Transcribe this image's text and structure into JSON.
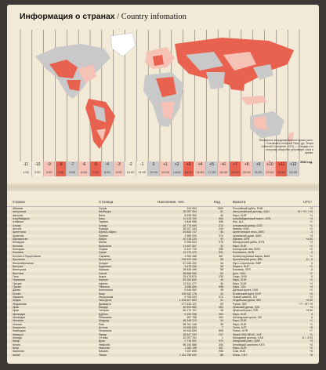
{
  "title_bold": "Информация о странах",
  "title_sub": "/ Country infomation",
  "note": "\"Всемирное координированное время (англ. Coordinated Universal Time), др. Temps Universel Coordonné, UTC) — стандарт, по которому общество регулирует часы и время.",
  "note2": "Данные актуальны на 2023 год.",
  "zones": [
    {
      "off": "-11",
      "time": "1:00",
      "color": "#f2ead7"
    },
    {
      "off": "-10",
      "time": "2:00",
      "color": "#f2ead7"
    },
    {
      "off": "-9",
      "time": "3:00",
      "color": "#f5c2b5"
    },
    {
      "off": "-8",
      "time": "4:00",
      "color": "#e8624f"
    },
    {
      "off": "-7",
      "time": "5:00",
      "color": "#c9c9c9"
    },
    {
      "off": "-6",
      "time": "6:00",
      "color": "#f5c2b5"
    },
    {
      "off": "-5",
      "time": "7:00",
      "color": "#e8624f"
    },
    {
      "off": "-4",
      "time": "8:00",
      "color": "#c9c9c9"
    },
    {
      "off": "-3",
      "time": "9:00",
      "color": "#f5c2b5"
    },
    {
      "off": "-2",
      "time": "10:00",
      "color": "#f2ead7"
    },
    {
      "off": "-1",
      "time": "11:00",
      "color": "#f2ead7"
    },
    {
      "off": "0",
      "time": "12:00",
      "color": "#c9c9c9"
    },
    {
      "off": "+1",
      "time": "13:00",
      "color": "#f5c2b5"
    },
    {
      "off": "+2",
      "time": "14:00",
      "color": "#c9c9c9"
    },
    {
      "off": "+3",
      "time": "15:00",
      "color": "#e8624f"
    },
    {
      "off": "+4",
      "time": "16:00",
      "color": "#f5c2b5"
    },
    {
      "off": "+5",
      "time": "17:00",
      "color": "#c9c9c9"
    },
    {
      "off": "+6",
      "time": "18:00",
      "color": "#f5c2b5"
    },
    {
      "off": "+7",
      "time": "19:00",
      "color": "#e8624f"
    },
    {
      "off": "+8",
      "time": "20:00",
      "color": "#f5c2b5"
    },
    {
      "off": "+9",
      "time": "21:00",
      "color": "#c9c9c9"
    },
    {
      "off": "+10",
      "time": "22:00",
      "color": "#f5c2b5"
    },
    {
      "off": "+11",
      "time": "23:00",
      "color": "#e8624f"
    },
    {
      "off": "+12",
      "time": "24:00",
      "color": "#c9c9c9"
    }
  ],
  "headers": {
    "country": "Страна",
    "capital": "Столица",
    "population": "Население, чел.",
    "code": "Код",
    "currency": "Валюта",
    "utc": "UTC¹"
  },
  "rows": [
    {
      "country": "Абхазия",
      "capital": "Сухум",
      "population": "243 564",
      "code": "7840",
      "currency": "Российский рубль, RUB",
      "utc": "+3"
    },
    {
      "country": "Австралия",
      "capital": "Канберра",
      "population": "26 087 900",
      "code": "61",
      "currency": "Австралийский доллар, AUD",
      "utc": "+8 / +9 / +10"
    },
    {
      "country": "Австрия",
      "capital": "Вена",
      "population": "8 935 362",
      "code": "43",
      "currency": "Евро, EUR",
      "utc": "+1"
    },
    {
      "country": "Азербайджан",
      "capital": "Баку",
      "population": "10 119 100",
      "code": "994",
      "currency": "Азербайджанский манат, AZN",
      "utc": "+4"
    },
    {
      "country": "Албания",
      "capital": "Тирана",
      "population": "2 845 955",
      "code": "355",
      "currency": "Лек, ALL",
      "utc": "+1"
    },
    {
      "country": "Алжир",
      "capital": "Алжир",
      "population": "45 775 650",
      "code": "213",
      "currency": "Алжирский динар, DZD",
      "utc": "+1"
    },
    {
      "country": "Ангола",
      "capital": "Луанда",
      "population": "35 027 343",
      "code": "244",
      "currency": "Кванза, AOA",
      "utc": "+1"
    },
    {
      "country": "Аргентина",
      "capital": "Буэнос-Айрес",
      "population": "45 808 747",
      "code": "54",
      "currency": "Аргентинское песо, ARS",
      "utc": "-3"
    },
    {
      "country": "Армения",
      "capital": "Ереван",
      "population": "2 969 200",
      "code": "374",
      "currency": "Армянский драм, AMD",
      "utc": "+4"
    },
    {
      "country": "Афганистан",
      "capital": "Кабул",
      "population": "40 218 234",
      "code": "93",
      "currency": "Афгани, AFN",
      "utc": "+4:30"
    },
    {
      "country": "Беларусь",
      "capital": "Минск",
      "population": "9 255 524",
      "code": "375",
      "currency": "Белорусский рубль, BYN",
      "utc": "+3"
    },
    {
      "country": "Бельгия",
      "capital": "Брюссель",
      "population": "11 697 557",
      "code": "32",
      "currency": "Евро, EUR",
      "utc": "+1"
    },
    {
      "country": "Болгария",
      "capital": "София",
      "population": "6 447 710",
      "code": "359",
      "currency": "Болгарский лев, BGN",
      "utc": "+2"
    },
    {
      "country": "Боливия",
      "capital": "Сукре",
      "population": "12 079 472",
      "code": "591",
      "currency": "Боливиано, BOB",
      "utc": "-4"
    },
    {
      "country": "Босния и Герцеговина",
      "capital": "Сараево",
      "population": "3 263 466",
      "code": "387",
      "currency": "Конвертируемая марка, BAM",
      "utc": "+1"
    },
    {
      "country": "Бразилия",
      "capital": "Бразилиа",
      "population": "216 422 446",
      "code": "55",
      "currency": "Бразильский реал, BRL",
      "utc": "-5 / -3"
    },
    {
      "country": "Великобритания",
      "capital": "Лондон",
      "population": "67 026 292",
      "code": "44",
      "currency": "Фунт стерлингов, GBP",
      "utc": "0"
    },
    {
      "country": "Венгрия",
      "capital": "Будапешт",
      "population": "9 676 330",
      "code": "36",
      "currency": "Форинт, HUF",
      "utc": "+1"
    },
    {
      "country": "Венесуэла",
      "capital": "Каракас",
      "population": "28 838 499",
      "code": "58",
      "currency": "Боливар, VES",
      "utc": "-4"
    },
    {
      "country": "Вьетнам",
      "capital": "Ханой",
      "population": "98 858 950",
      "code": "84",
      "currency": "Донг, VND",
      "utc": "+7"
    },
    {
      "country": "Гана",
      "capital": "Аккра",
      "population": "33 475 870",
      "code": "233",
      "currency": "Седи, GHS",
      "utc": "0"
    },
    {
      "country": "Германия",
      "capital": "Берлин",
      "population": "83 369 843",
      "code": "49",
      "currency": "Евро, EUR",
      "utc": "+1"
    },
    {
      "country": "Греция",
      "capital": "Афины",
      "population": "10 341 277",
      "code": "30",
      "currency": "Евро, EUR",
      "utc": "+2"
    },
    {
      "country": "Грузия",
      "capital": "Тбилиси",
      "population": "3 688 600",
      "code": "995",
      "currency": "Лари, GEL",
      "utc": "+4"
    },
    {
      "country": "Дания",
      "capital": "Копенгаген",
      "population": "5 946 952",
      "code": "45",
      "currency": "Датская крона, DKK",
      "utc": "+1"
    },
    {
      "country": "Египет",
      "capital": "Каир",
      "population": "109 262 178",
      "code": "20",
      "currency": "Египетский фунт, EGP",
      "utc": "+2"
    },
    {
      "country": "Израиль",
      "capital": "Иерусалим",
      "population": "9 795 000",
      "code": "972",
      "currency": "Новый шекель, ILS",
      "utc": "+2"
    },
    {
      "country": "Индия",
      "capital": "Нью-Дели",
      "population": "1 428 627 663",
      "code": "91",
      "currency": "Индийская рупия, INR",
      "utc": "+5:30"
    },
    {
      "country": "Индонезия",
      "capital": "Джакарта",
      "population": "277 534 122",
      "code": "62",
      "currency": "Рупия, IDR",
      "utc": "+7 / +8 / +9"
    },
    {
      "country": "Ирак",
      "capital": "Багдад",
      "population": "45 504 560",
      "code": "964",
      "currency": "Иракский динар, IQD",
      "utc": "+3"
    },
    {
      "country": "Иран",
      "capital": "Тегеран",
      "population": "89 172 767",
      "code": "98",
      "currency": "Иранский риал, IRR",
      "utc": "+3:30"
    },
    {
      "country": "Ирландия",
      "capital": "Дублин",
      "population": "5 194 336",
      "code": "353",
      "currency": "Евро, EUR",
      "utc": "0"
    },
    {
      "country": "Исландия",
      "capital": "Рейкьявик",
      "population": "387 758",
      "code": "354",
      "currency": "Исландская крона, ISK",
      "utc": "0"
    },
    {
      "country": "Испания",
      "capital": "Мадрид",
      "population": "48 345 223",
      "code": "34",
      "currency": "Евро, EUR",
      "utc": "+1"
    },
    {
      "country": "Италия",
      "capital": "Рим",
      "population": "58 761 146",
      "code": "39",
      "currency": "Евро, EUR",
      "utc": "+1"
    },
    {
      "country": "Казахстан",
      "capital": "Астана",
      "population": "19 606 633",
      "code": "7",
      "currency": "Тенге, KZT",
      "utc": "+5"
    },
    {
      "country": "Камбоджа",
      "capital": "Пномпень",
      "population": "16 944 826",
      "code": "855",
      "currency": "Риель, KHR",
      "utc": "+7"
    },
    {
      "country": "Камерун",
      "capital": "Яунде",
      "population": "28 647 293",
      "code": "237",
      "currency": "Франк КФА ВЕАС, XAF",
      "utc": "+1"
    },
    {
      "country": "Канада",
      "capital": "Оттава",
      "population": "40 097 761",
      "code": "1",
      "currency": "Канадский доллар, CAD",
      "utc": "-8 / -3:30"
    },
    {
      "country": "Катар",
      "capital": "Доха",
      "population": "2 716 391",
      "code": "974",
      "currency": "Катарский риал, QAR",
      "utc": "+3"
    },
    {
      "country": "Кения",
      "capital": "Найроби",
      "population": "55 100 586",
      "code": "254",
      "currency": "Кенийский шиллинг, KES",
      "utc": "+3"
    },
    {
      "country": "Кипр",
      "capital": "Никосия",
      "population": "1 260 138",
      "code": "357",
      "currency": "Евро, EUR",
      "utc": "+2"
    },
    {
      "country": "Киргизия",
      "capital": "Бишкек",
      "population": "7 037 590",
      "code": "996",
      "currency": "Сом, KGS",
      "utc": "+6"
    },
    {
      "country": "Китай",
      "capital": "Пекин",
      "population": "1 411 750 000",
      "code": "86",
      "currency": "Юань, CNY",
      "utc": "+8"
    }
  ]
}
